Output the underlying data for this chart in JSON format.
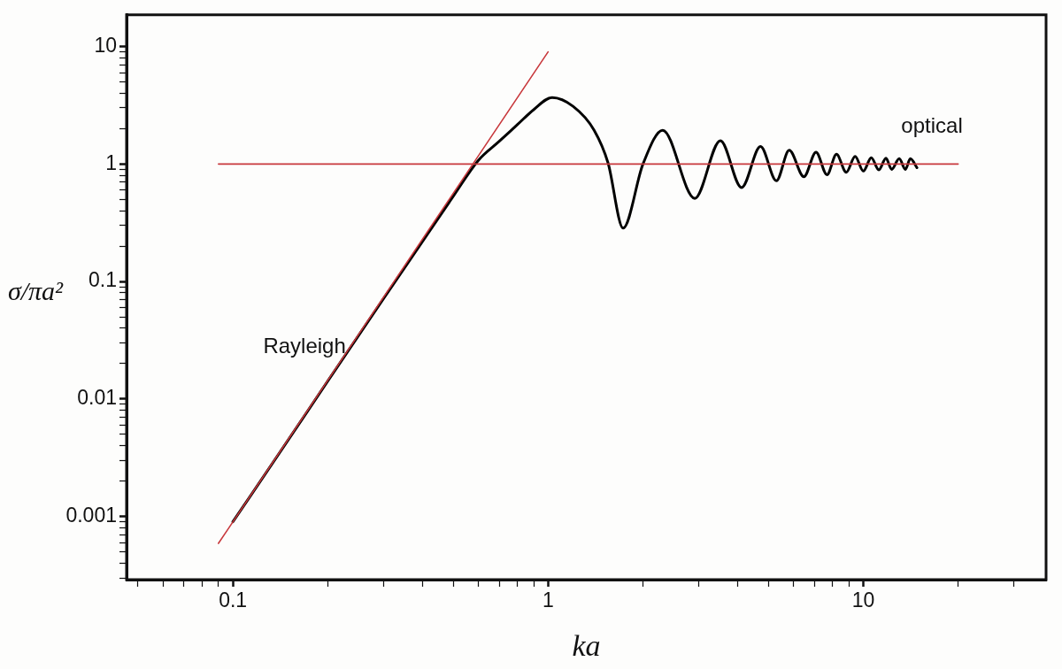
{
  "chart_data": {
    "type": "line",
    "xlabel": "ka",
    "ylabel": "σ/πa²",
    "log": "xy",
    "grid": false,
    "legend": false,
    "marker": "none",
    "line_style": "solid",
    "xlim": [
      0.046,
      38
    ],
    "ylim": [
      0.00029,
      18.6
    ],
    "xticks": [
      {
        "value": 0.05,
        "label": null
      },
      {
        "value": 0.06,
        "label": null
      },
      {
        "value": 0.07,
        "label": null
      },
      {
        "value": 0.08,
        "label": null
      },
      {
        "value": 0.09,
        "label": null
      },
      0.1,
      {
        "value": 0.2,
        "label": null
      },
      {
        "value": 0.3,
        "label": null
      },
      {
        "value": 0.4,
        "label": null
      },
      {
        "value": 0.5,
        "label": null
      },
      {
        "value": 0.6,
        "label": null
      },
      {
        "value": 0.7,
        "label": null
      },
      {
        "value": 0.8,
        "label": null
      },
      {
        "value": 0.9,
        "label": null
      },
      1,
      {
        "value": 2,
        "label": null
      },
      {
        "value": 3,
        "label": null
      },
      {
        "value": 4,
        "label": null
      },
      {
        "value": 5,
        "label": null
      },
      {
        "value": 6,
        "label": null
      },
      {
        "value": 7,
        "label": null
      },
      {
        "value": 8,
        "label": null
      },
      {
        "value": 9,
        "label": null
      },
      10,
      {
        "value": 20,
        "label": null
      },
      {
        "value": 30,
        "label": null
      }
    ],
    "yticks": [
      {
        "value": 0.0003,
        "label": null
      },
      {
        "value": 0.0004,
        "label": null
      },
      {
        "value": 0.0005,
        "label": null
      },
      {
        "value": 0.0006,
        "label": null
      },
      {
        "value": 0.0007,
        "label": null
      },
      {
        "value": 0.0008,
        "label": null
      },
      {
        "value": 0.0009,
        "label": null
      },
      0.001,
      {
        "value": 0.002,
        "label": null
      },
      {
        "value": 0.003,
        "label": null
      },
      {
        "value": 0.004,
        "label": null
      },
      {
        "value": 0.005,
        "label": null
      },
      {
        "value": 0.006,
        "label": null
      },
      {
        "value": 0.007,
        "label": null
      },
      {
        "value": 0.008,
        "label": null
      },
      {
        "value": 0.009,
        "label": null
      },
      0.01,
      {
        "value": 0.02,
        "label": null
      },
      {
        "value": 0.03,
        "label": null
      },
      {
        "value": 0.04,
        "label": null
      },
      {
        "value": 0.05,
        "label": null
      },
      {
        "value": 0.06,
        "label": null
      },
      {
        "value": 0.07,
        "label": null
      },
      {
        "value": 0.08,
        "label": null
      },
      {
        "value": 0.09,
        "label": null
      },
      0.1,
      {
        "value": 0.2,
        "label": null
      },
      {
        "value": 0.3,
        "label": null
      },
      {
        "value": 0.4,
        "label": null
      },
      {
        "value": 0.5,
        "label": null
      },
      {
        "value": 0.6,
        "label": null
      },
      {
        "value": 0.7,
        "label": null
      },
      {
        "value": 0.8,
        "label": null
      },
      {
        "value": 0.9,
        "label": null
      },
      1,
      {
        "value": 2,
        "label": null
      },
      {
        "value": 3,
        "label": null
      },
      {
        "value": 4,
        "label": null
      },
      {
        "value": 5,
        "label": null
      },
      {
        "value": 6,
        "label": null
      },
      {
        "value": 7,
        "label": null
      },
      {
        "value": 8,
        "label": null
      },
      {
        "value": 9,
        "label": null
      },
      10
    ],
    "series": [
      {
        "name": "Rayleigh",
        "color": "#c8383c",
        "x": [
          0.09,
          1
        ],
        "values": [
          0.00059,
          9
        ]
      },
      {
        "name": "optical",
        "color": "#c8383c",
        "x": [
          0.09,
          20
        ],
        "values": [
          1,
          1
        ]
      },
      {
        "color": "#000000",
        "x": [
          0.1,
          0.15,
          0.2,
          0.3,
          0.4,
          0.5,
          0.6,
          0.7,
          0.8,
          0.9,
          1.03,
          1.2,
          1.4,
          1.55,
          1.73,
          2.0,
          2.31,
          2.92,
          3.52,
          4.11,
          4.72,
          5.3,
          5.82,
          6.48,
          7.08,
          7.67,
          8.22,
          8.83,
          9.42,
          10.0,
          10.6,
          11.2,
          11.8,
          12.3,
          13.0,
          13.6,
          14.1,
          14.8
        ],
        "values": [
          0.0009,
          0.0045,
          0.0142,
          0.071,
          0.22,
          0.53,
          1.07,
          1.56,
          2.17,
          2.9,
          3.68,
          3.1,
          1.94,
          1.02,
          0.285,
          1.0,
          1.94,
          0.51,
          1.58,
          0.63,
          1.41,
          0.72,
          1.31,
          0.78,
          1.26,
          0.81,
          1.21,
          0.85,
          1.16,
          0.87,
          1.13,
          0.89,
          1.12,
          0.9,
          1.11,
          0.9,
          1.11,
          0.93
        ]
      }
    ]
  }
}
